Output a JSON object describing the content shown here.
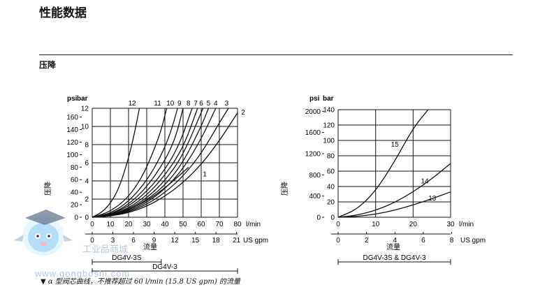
{
  "header": {
    "page_title": "性能数据",
    "section_title": "压降"
  },
  "footnote": "▼ α 型阀芯曲线，不推荐超过 60 l/min (15.8 US gpm) 的流量",
  "watermark": {
    "text": "工业品商城",
    "url": "www.gongboshi.com",
    "colors": {
      "mascot": "#9fd6f5",
      "text": "#b9c9dd"
    }
  },
  "chart_data": [
    {
      "type": "line",
      "units": {
        "left_outer": "psi",
        "left_inner": "bar",
        "x_metric": "l/min",
        "x_us": "US gpm"
      },
      "ylabel": "压降",
      "xlabel": "流量",
      "xlim": [
        0,
        80
      ],
      "ylim": [
        0,
        12
      ],
      "x_ticks": [
        "0",
        "10",
        "20",
        "30",
        "40",
        "50",
        "60",
        "70",
        "80"
      ],
      "y_ticks": [
        "0",
        "2",
        "4",
        "6",
        "8",
        "10",
        "12"
      ],
      "psi_ticks": [
        "0",
        "20",
        "40",
        "60",
        "80",
        "100",
        "120",
        "140",
        "160"
      ],
      "gpm_ticks": [
        "0",
        "3",
        "6",
        "9",
        "12",
        "15",
        "18",
        "21"
      ],
      "grid": true,
      "ranges": [
        {
          "label": "DG4V-3S",
          "x": [
            0,
            38
          ]
        },
        {
          "label": "DG4V-3",
          "x": [
            0,
            80
          ]
        }
      ],
      "series": [
        {
          "name": "12",
          "x": [
            0,
            5,
            10,
            15,
            20,
            23,
            26
          ],
          "y": [
            0,
            0.5,
            1.5,
            3.3,
            6.5,
            9.0,
            12.0
          ]
        },
        {
          "name": "11",
          "x": [
            0,
            10,
            20,
            28,
            34,
            38,
            41
          ],
          "y": [
            0,
            0.6,
            2.2,
            4.6,
            7.4,
            9.6,
            12.0
          ]
        },
        {
          "name": "10",
          "x": [
            0,
            10,
            20,
            30,
            38,
            43,
            47
          ],
          "y": [
            0,
            0.4,
            1.7,
            4.0,
            6.8,
            9.2,
            12.0
          ]
        },
        {
          "name": "9",
          "x": [
            0,
            10,
            20,
            30,
            40,
            46,
            50
          ],
          "y": [
            0,
            0.3,
            1.4,
            3.3,
            6.2,
            8.8,
            12.0
          ]
        },
        {
          "name": "8",
          "x": [
            0,
            10,
            20,
            30,
            40,
            48,
            55
          ],
          "y": [
            0,
            0.3,
            1.2,
            2.8,
            5.2,
            8.0,
            12.0
          ]
        },
        {
          "name": "7",
          "x": [
            0,
            10,
            20,
            30,
            40,
            50,
            58
          ],
          "y": [
            0,
            0.25,
            1.0,
            2.4,
            4.6,
            7.6,
            12.0
          ]
        },
        {
          "name": "6",
          "x": [
            0,
            10,
            20,
            30,
            40,
            50,
            61
          ],
          "y": [
            0,
            0.2,
            0.9,
            2.1,
            4.0,
            6.8,
            12.0
          ]
        },
        {
          "name": "5",
          "x": [
            0,
            10,
            20,
            30,
            40,
            50,
            60,
            64
          ],
          "y": [
            0,
            0.18,
            0.8,
            1.9,
            3.5,
            6.0,
            10.0,
            12.0
          ]
        },
        {
          "name": "4",
          "x": [
            0,
            10,
            20,
            30,
            40,
            50,
            60,
            68
          ],
          "y": [
            0,
            0.16,
            0.7,
            1.6,
            3.1,
            5.3,
            8.6,
            12.0
          ]
        },
        {
          "name": "3",
          "x": [
            0,
            10,
            20,
            30,
            40,
            50,
            60,
            70,
            75
          ],
          "y": [
            0,
            0.14,
            0.6,
            1.4,
            2.7,
            4.5,
            7.0,
            10.4,
            12.0
          ]
        },
        {
          "name": "2",
          "x": [
            0,
            10,
            20,
            30,
            40,
            50,
            60,
            70,
            80
          ],
          "y": [
            0,
            0.12,
            0.5,
            1.2,
            2.3,
            3.8,
            5.8,
            8.4,
            11.5
          ]
        },
        {
          "name": "1",
          "x": [
            0,
            10,
            20,
            30,
            40,
            48,
            53
          ],
          "y": [
            0,
            0.2,
            0.8,
            1.8,
            3.2,
            4.6,
            5.5
          ]
        }
      ]
    },
    {
      "type": "line",
      "units": {
        "left_outer": "psi",
        "left_inner": "bar",
        "x_metric": "l/min",
        "x_us": "US gpm"
      },
      "ylabel": "压降",
      "xlabel": "流量",
      "xlim": [
        0,
        30
      ],
      "ylim": [
        0,
        140
      ],
      "x_ticks": [
        "0",
        "10",
        "20",
        "30"
      ],
      "y_ticks": [
        "0",
        "20",
        "40",
        "60",
        "80",
        "100",
        "120",
        "140"
      ],
      "psi_ticks": [
        "0",
        "400",
        "800",
        "1200",
        "1600",
        "2000"
      ],
      "gpm_ticks": [
        "0",
        "2",
        "4",
        "6",
        "8"
      ],
      "grid": true,
      "ranges": [
        {
          "label": "DG4V-3S & DG4V-3",
          "x": [
            0,
            30
          ]
        }
      ],
      "series": [
        {
          "name": "15",
          "x": [
            0,
            5,
            10,
            15,
            20,
            24
          ],
          "y": [
            0,
            10,
            34,
            72,
            116,
            140
          ]
        },
        {
          "name": "14",
          "x": [
            0,
            5,
            10,
            15,
            20,
            25,
            30
          ],
          "y": [
            0,
            2.5,
            9,
            19,
            33,
            50,
            70
          ]
        },
        {
          "name": "13",
          "x": [
            0,
            5,
            10,
            15,
            20,
            25,
            30
          ],
          "y": [
            0,
            1,
            4,
            9,
            16,
            24,
            33
          ]
        }
      ]
    }
  ]
}
